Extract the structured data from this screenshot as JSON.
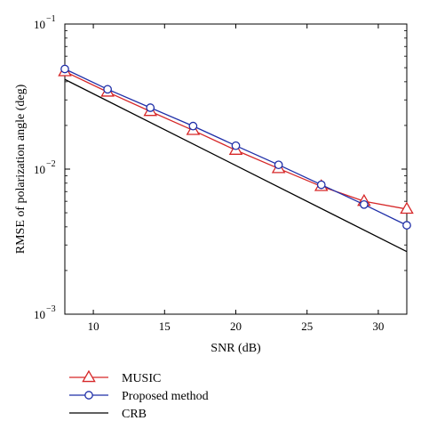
{
  "chart_data": {
    "type": "line",
    "xlabel": "SNR (dB)",
    "ylabel": "RMSE of polarization angle (deg)",
    "xlim": [
      8,
      32
    ],
    "ylim": [
      0.001,
      0.1
    ],
    "yscale": "log",
    "grid": false,
    "legend_position": "bottom-left, below plot",
    "x_ticks": [
      10,
      15,
      20,
      25,
      30
    ],
    "y_ticks": [
      {
        "value": 0.1,
        "base": "10",
        "exp": "−1"
      },
      {
        "value": 0.01,
        "base": "10",
        "exp": "−2"
      },
      {
        "value": 0.001,
        "base": "10",
        "exp": "−3"
      }
    ],
    "x": [
      8,
      11,
      14,
      17,
      20,
      23,
      26,
      29,
      32
    ],
    "series": [
      {
        "name": "MUSIC",
        "color": "#d62728",
        "marker": "triangle",
        "values": [
          0.047,
          0.034,
          0.025,
          0.0185,
          0.0135,
          0.0101,
          0.0076,
          0.006,
          0.0053
        ]
      },
      {
        "name": "Proposed method",
        "color": "#1f2fa8",
        "marker": "circle",
        "values": [
          0.049,
          0.0355,
          0.0265,
          0.0198,
          0.0145,
          0.0107,
          0.0078,
          0.0057,
          0.0041
        ]
      },
      {
        "name": "CRB",
        "color": "#000000",
        "marker": "none",
        "x": [
          8,
          32
        ],
        "values": [
          0.0415,
          0.0027
        ]
      }
    ]
  }
}
